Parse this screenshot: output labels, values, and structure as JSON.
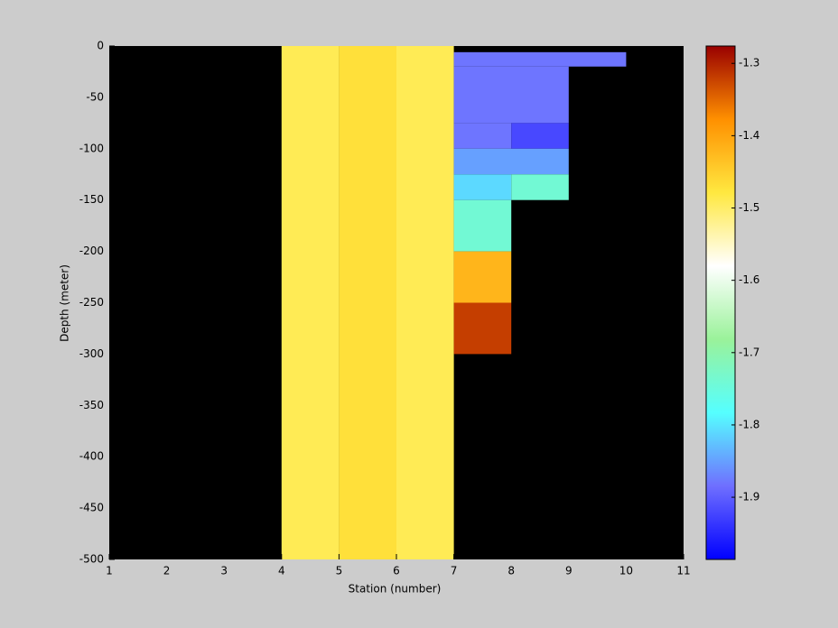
{
  "chart_data": {
    "type": "heatmap",
    "xlabel": "Station (number)",
    "ylabel": "Depth (meter)",
    "xlim": [
      1,
      11
    ],
    "xticks": [
      1,
      2,
      3,
      4,
      5,
      6,
      7,
      8,
      9,
      10,
      11
    ],
    "ylim": [
      -500,
      0
    ],
    "yticks": [
      0,
      -50,
      -100,
      -150,
      -200,
      -250,
      -300,
      -350,
      -400,
      -450,
      -500
    ],
    "background": "#000000",
    "colormap": [
      "#0000ff",
      "#6f6fff",
      "#55ffff",
      "#9af29a",
      "#ffffff",
      "#ffe840",
      "#ff9000",
      "#990000"
    ],
    "clim": [
      -1.986,
      -1.276
    ],
    "cticks": [
      -1.3,
      -1.4,
      -1.5,
      -1.6,
      -1.7,
      -1.8,
      -1.9
    ],
    "cells": [
      {
        "x": [
          4,
          5
        ],
        "y": [
          0,
          -500
        ],
        "value": -1.49
      },
      {
        "x": [
          5,
          6
        ],
        "y": [
          0,
          -500
        ],
        "value": -1.47
      },
      {
        "x": [
          6,
          7
        ],
        "y": [
          0,
          -500
        ],
        "value": -1.49
      },
      {
        "x": [
          7,
          10
        ],
        "y": [
          -6,
          -20
        ],
        "value": -1.88
      },
      {
        "x": [
          7,
          9
        ],
        "y": [
          -20,
          -75
        ],
        "value": -1.88
      },
      {
        "x": [
          7,
          8
        ],
        "y": [
          -75,
          -100
        ],
        "value": -1.88
      },
      {
        "x": [
          8,
          9
        ],
        "y": [
          -75,
          -100
        ],
        "value": -1.92
      },
      {
        "x": [
          7,
          9
        ],
        "y": [
          -100,
          -125
        ],
        "value": -1.85
      },
      {
        "x": [
          7,
          8
        ],
        "y": [
          -125,
          -150
        ],
        "value": -1.81
      },
      {
        "x": [
          8,
          9
        ],
        "y": [
          -125,
          -150
        ],
        "value": -1.74
      },
      {
        "x": [
          7,
          8
        ],
        "y": [
          -150,
          -200
        ],
        "value": -1.74
      },
      {
        "x": [
          7,
          8
        ],
        "y": [
          -200,
          -250
        ],
        "value": -1.42
      },
      {
        "x": [
          7,
          8
        ],
        "y": [
          -250,
          -300
        ],
        "value": -1.32
      }
    ]
  }
}
